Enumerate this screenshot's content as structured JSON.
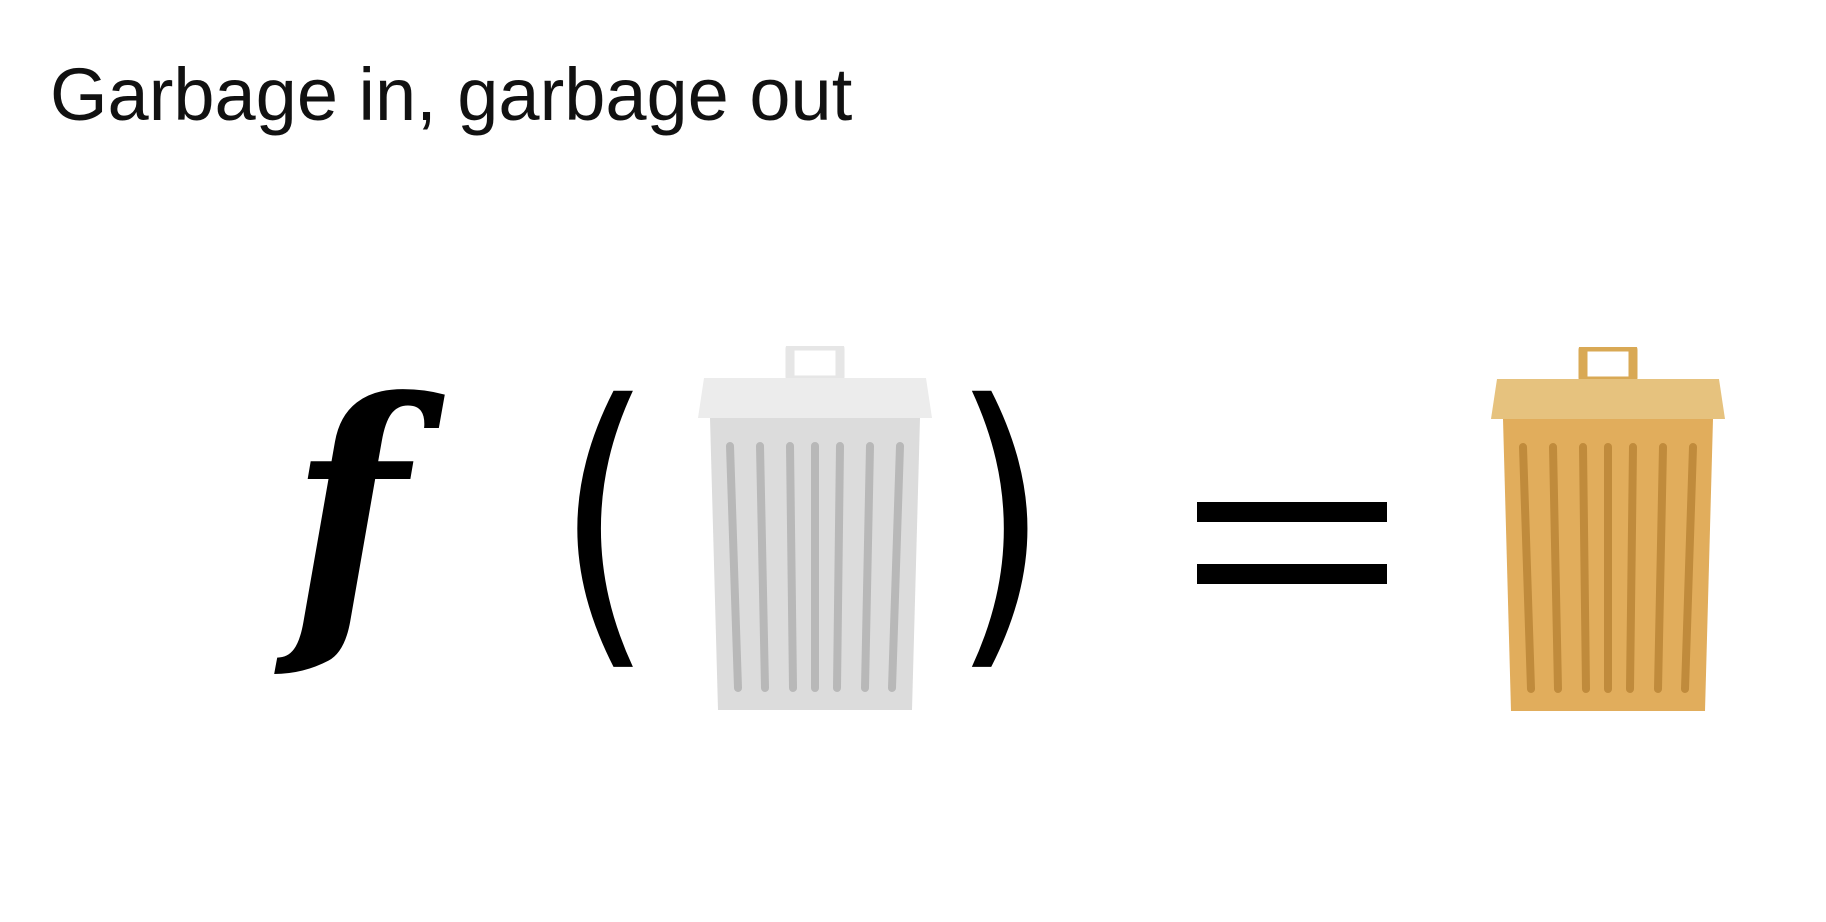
{
  "title": "Garbage in, garbage out",
  "equation": {
    "function_symbol": "f",
    "open_paren": "(",
    "close_paren": ")",
    "equals_symbol": "=",
    "input_icon": "trash-can-icon",
    "output_icon": "trash-can-icon"
  },
  "colors": {
    "text": "#000000",
    "input_bin_lid": "#ececec",
    "input_bin_body": "#dcdcdc",
    "input_bin_stripes": "#b8b8b8",
    "output_bin_lid": "#e6c27e",
    "output_bin_body": "#e1ad5c",
    "output_bin_stripes": "#c08b3c"
  }
}
